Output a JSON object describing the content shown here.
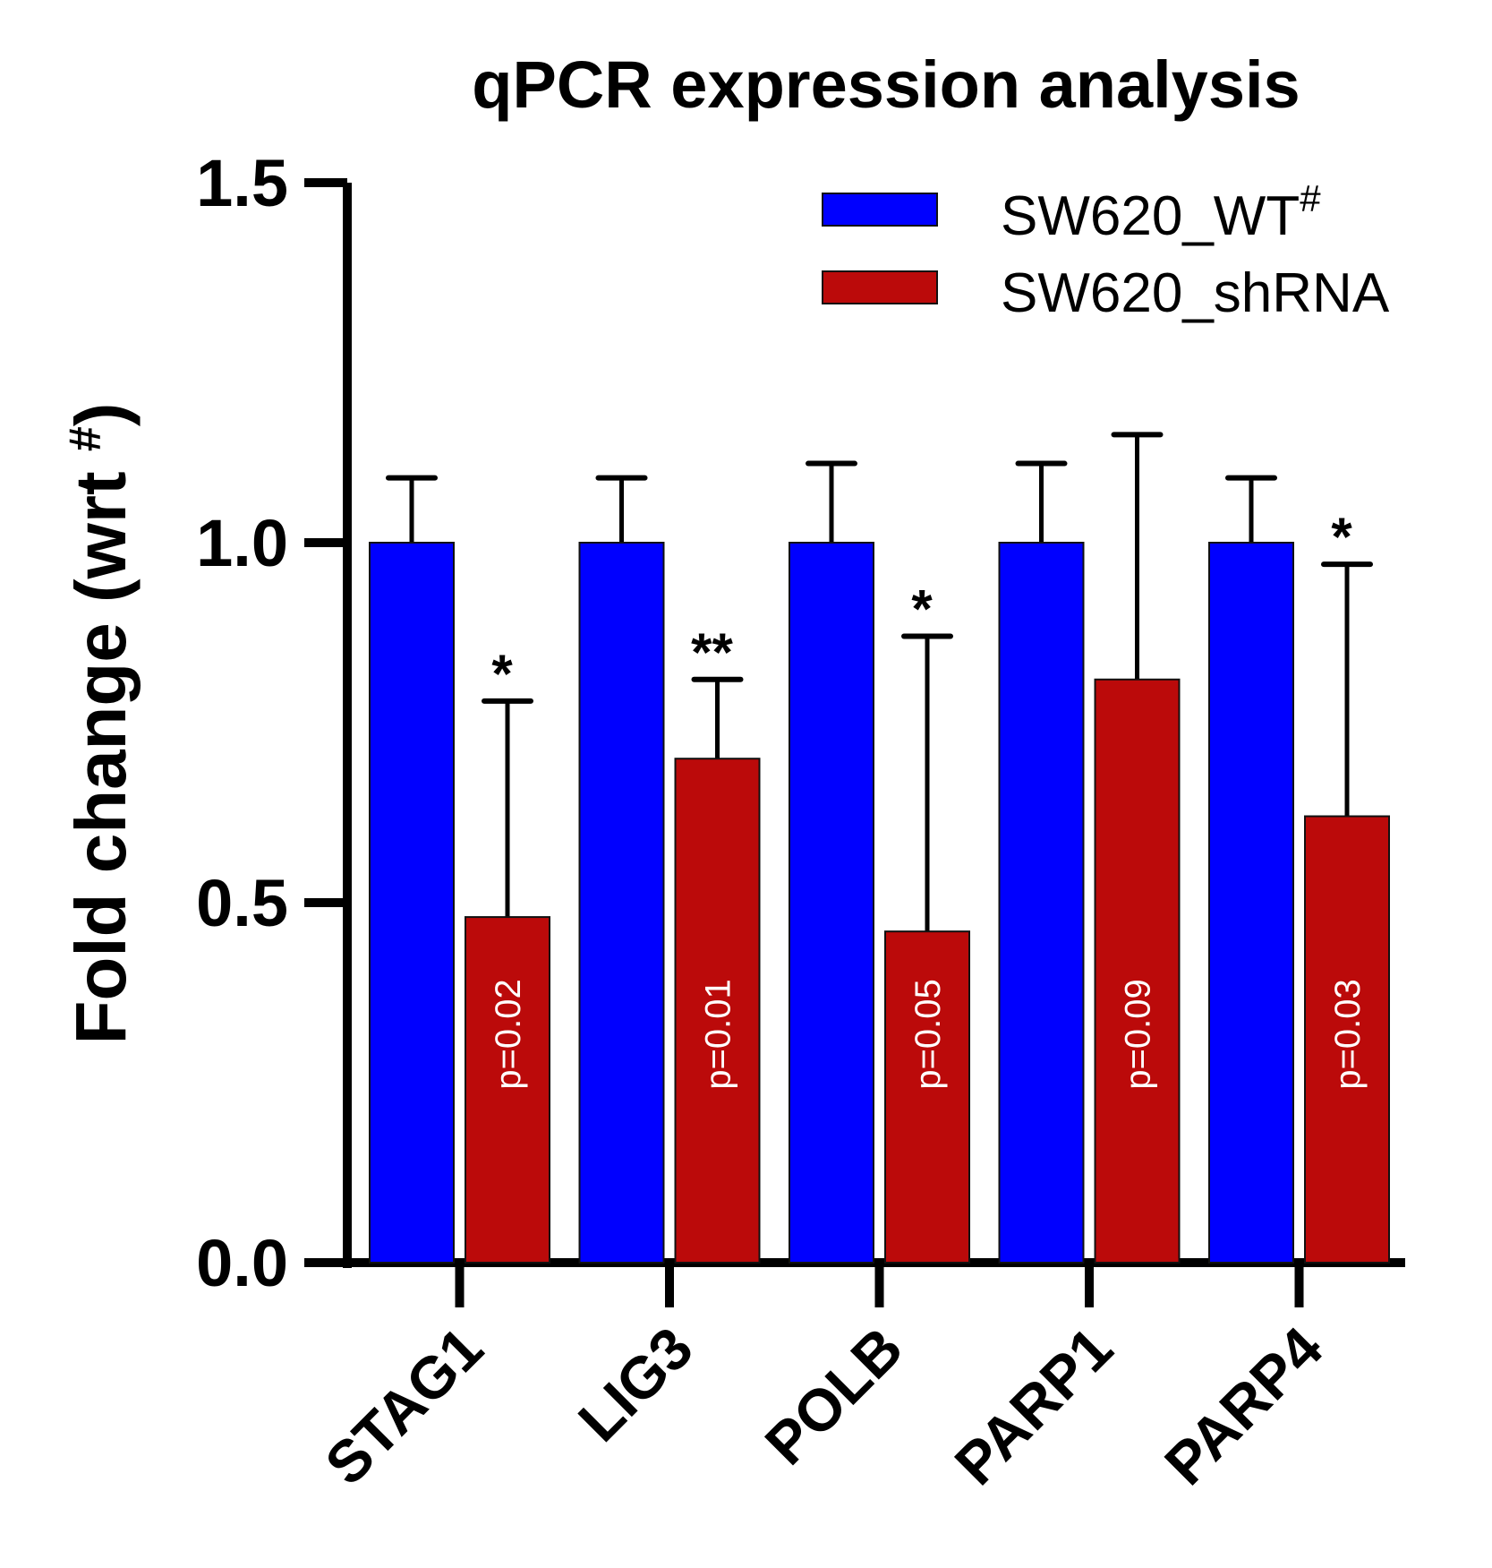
{
  "chart_data": {
    "type": "bar",
    "title": "qPCR expression analysis",
    "xlabel": "",
    "ylabel": "Fold  change (wrt #)",
    "ylabel_main": "Fold  change (wrt ",
    "ylabel_sup": "#",
    "ylabel_close": ")",
    "ylim": [
      0,
      1.5
    ],
    "yticks": [
      0.0,
      0.5,
      1.0,
      1.5
    ],
    "ytick_labels": [
      "0.0",
      "0.5",
      "1.0",
      "1.5"
    ],
    "grid": false,
    "legend_position": "top-right",
    "categories": [
      "STAG1",
      "LIG3",
      "POLB",
      "PARP1",
      "PARP4"
    ],
    "series": [
      {
        "name": "SW620_WT#",
        "label_main": "SW620_WT",
        "label_sup": "#",
        "color": "#0000ff",
        "values": [
          1.0,
          1.0,
          1.0,
          1.0,
          1.0
        ],
        "error_upper": [
          1.09,
          1.09,
          1.11,
          1.11,
          1.09
        ]
      },
      {
        "name": "SW620_shRNA",
        "label_main": "SW620_shRNA",
        "label_sup": "",
        "color": "#bb0a0a",
        "values": [
          0.48,
          0.7,
          0.46,
          0.81,
          0.62
        ],
        "error_upper": [
          0.78,
          0.81,
          0.87,
          1.15,
          0.97
        ]
      }
    ],
    "annotations": {
      "significance": [
        "*",
        "**",
        "*",
        "",
        "*"
      ],
      "p_values": [
        "p=0.02",
        "p=0.01",
        "p=0.05",
        "p=0.09",
        "p=0.03"
      ]
    }
  }
}
